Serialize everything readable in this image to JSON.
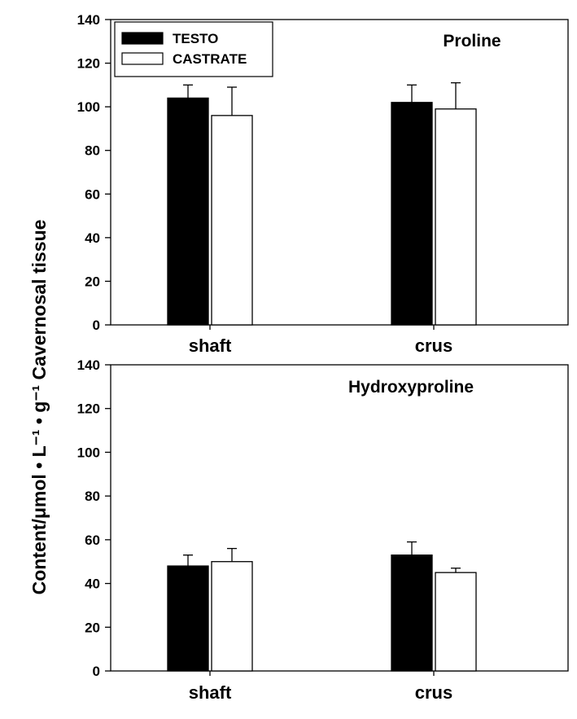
{
  "ylabel": "Content/μmol • L⁻¹ • g⁻¹ Cavernosal tissue",
  "legend": [
    {
      "label": "TESTO",
      "color": "#000000"
    },
    {
      "label": "CASTRATE",
      "color": "#ffffff"
    }
  ],
  "chart_data": [
    {
      "type": "bar",
      "title": "Proline",
      "categories": [
        "shaft",
        "crus"
      ],
      "ylim": [
        0,
        140
      ],
      "yticks": [
        "0",
        "20",
        "40",
        "60",
        "80",
        "100",
        "120",
        "140"
      ],
      "series": [
        {
          "name": "TESTO",
          "color": "#000000",
          "values": [
            104,
            102
          ],
          "errors": [
            6,
            8
          ]
        },
        {
          "name": "CASTRATE",
          "color": "#ffffff",
          "values": [
            96,
            99
          ],
          "errors": [
            13,
            12
          ]
        }
      ]
    },
    {
      "type": "bar",
      "title": "Hydroxyproline",
      "categories": [
        "shaft",
        "crus"
      ],
      "ylim": [
        0,
        140
      ],
      "yticks": [
        "0",
        "20",
        "40",
        "60",
        "80",
        "100",
        "120",
        "140"
      ],
      "series": [
        {
          "name": "TESTO",
          "color": "#000000",
          "values": [
            48,
            53
          ],
          "errors": [
            5,
            6
          ]
        },
        {
          "name": "CASTRATE",
          "color": "#ffffff",
          "values": [
            50,
            45
          ],
          "errors": [
            6,
            2
          ]
        }
      ]
    }
  ]
}
